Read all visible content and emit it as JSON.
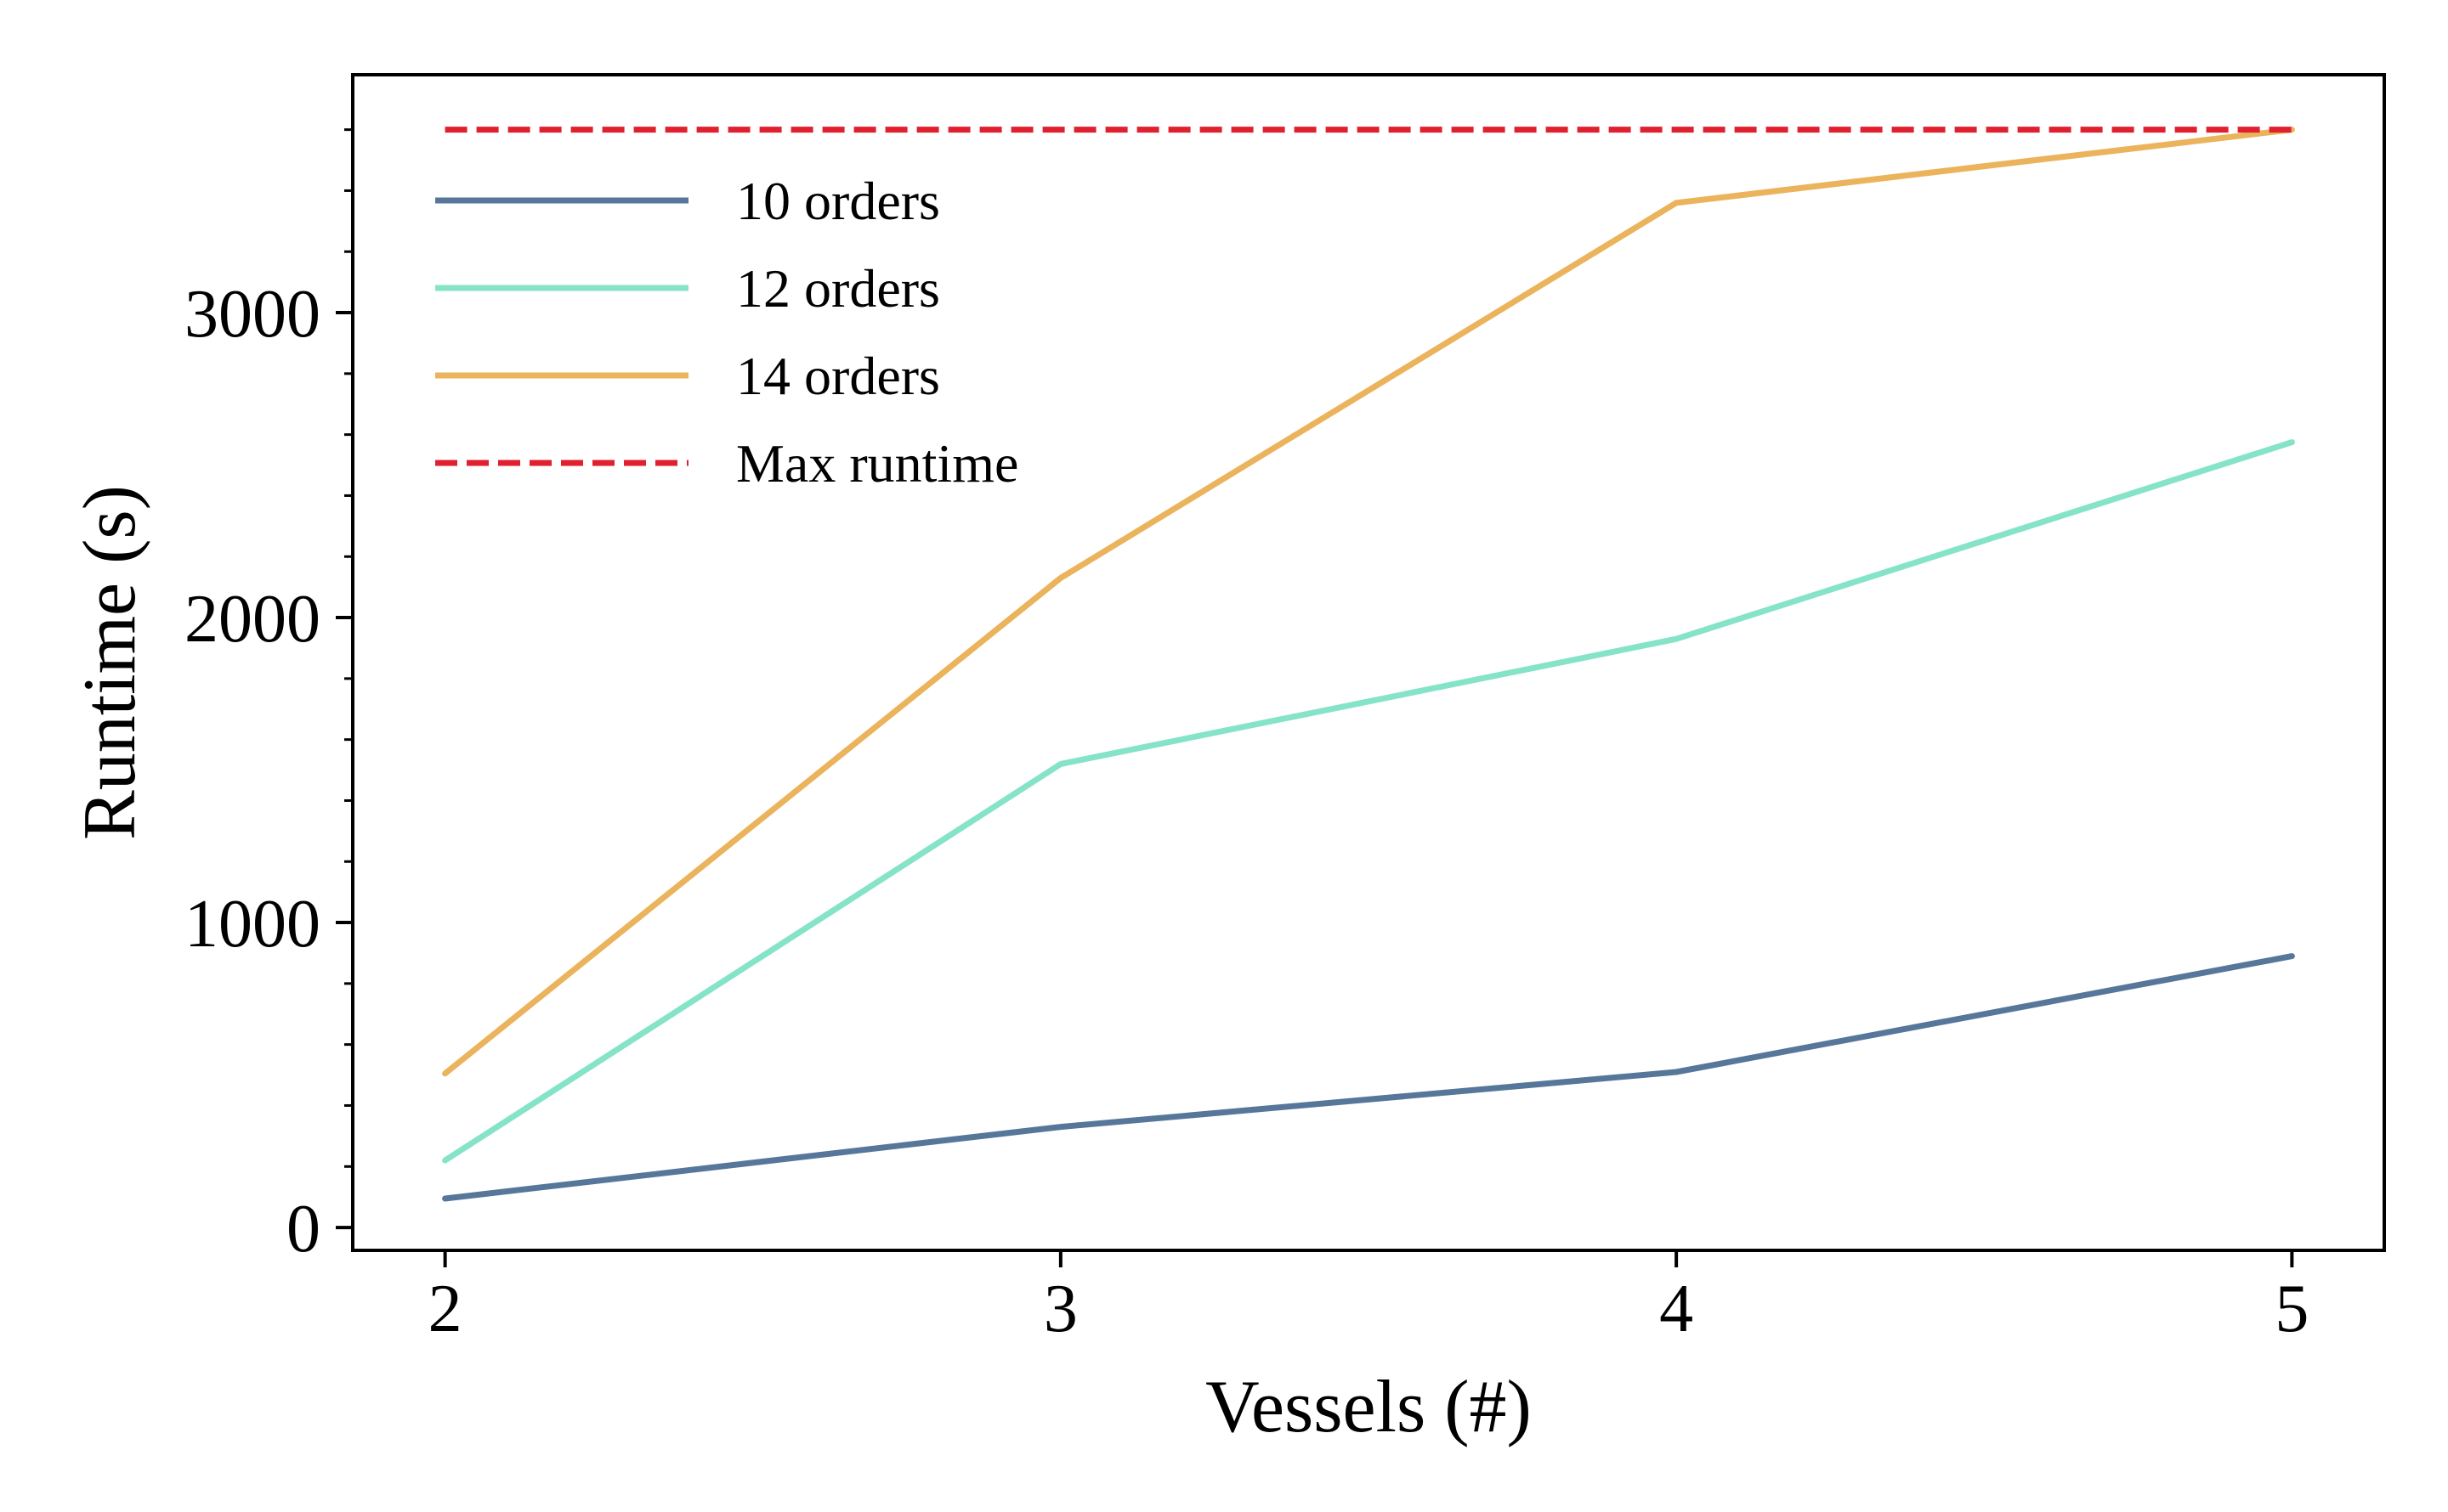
{
  "chart_data": {
    "type": "line",
    "title": "",
    "xlabel": "Vessels (#)",
    "ylabel": "Runtime (s)",
    "x": [
      2,
      3,
      4,
      5
    ],
    "xlim": [
      1.85,
      5.15
    ],
    "ylim": [
      -75,
      3780
    ],
    "xticks": [
      2,
      3,
      4,
      5
    ],
    "xtick_labels": [
      "2",
      "3",
      "4",
      "5"
    ],
    "yticks": [
      0,
      1000,
      2000,
      3000
    ],
    "ytick_labels": [
      "0",
      "1000",
      "2000",
      "3000"
    ],
    "grid": false,
    "legend_position": "upper-left",
    "series": [
      {
        "name": "10 orders",
        "values": [
          95,
          330,
          510,
          890
        ],
        "color": "#56779a",
        "style": "solid"
      },
      {
        "name": "12 orders",
        "values": [
          220,
          1520,
          1930,
          2575
        ],
        "color": "#85e3c8",
        "style": "solid"
      },
      {
        "name": "14 orders",
        "values": [
          505,
          2130,
          3360,
          3600
        ],
        "color": "#ebb35c",
        "style": "solid"
      },
      {
        "name": "Max runtime",
        "values": [
          3600,
          3600,
          3600,
          3600
        ],
        "color": "#e0202e",
        "style": "dashed"
      }
    ]
  }
}
